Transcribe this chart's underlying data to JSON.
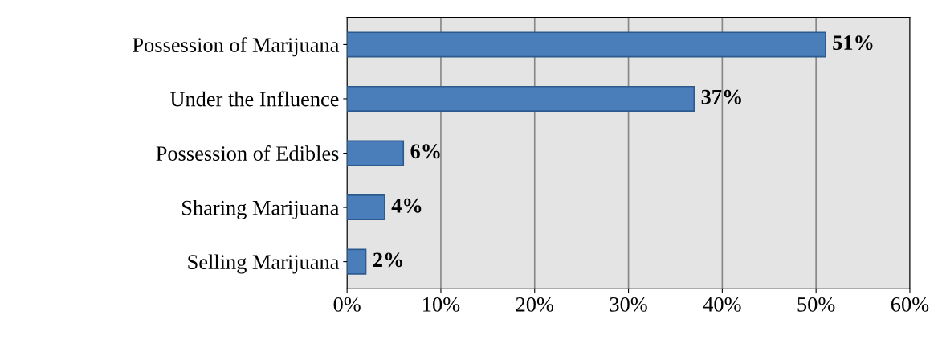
{
  "chart_data": {
    "type": "bar",
    "orientation": "horizontal",
    "categories": [
      "Possession of Marijuana",
      "Under the Influence",
      "Possession of Edibles",
      "Sharing Marijuana",
      "Selling Marijuana"
    ],
    "values": [
      51,
      37,
      6,
      4,
      2
    ],
    "value_labels": [
      "51%",
      "37%",
      "6%",
      "4%",
      "2%"
    ],
    "color": "#4a7ebb",
    "xlim": [
      0,
      60
    ],
    "xticks": [
      {
        "value": 0,
        "label": "0%"
      },
      {
        "value": 10,
        "label": "10%"
      },
      {
        "value": 20,
        "label": "20%"
      },
      {
        "value": 30,
        "label": "30%"
      },
      {
        "value": 40,
        "label": "40%"
      },
      {
        "value": 50,
        "label": "50%"
      },
      {
        "value": 60,
        "label": "60%"
      }
    ],
    "grid": "x"
  }
}
